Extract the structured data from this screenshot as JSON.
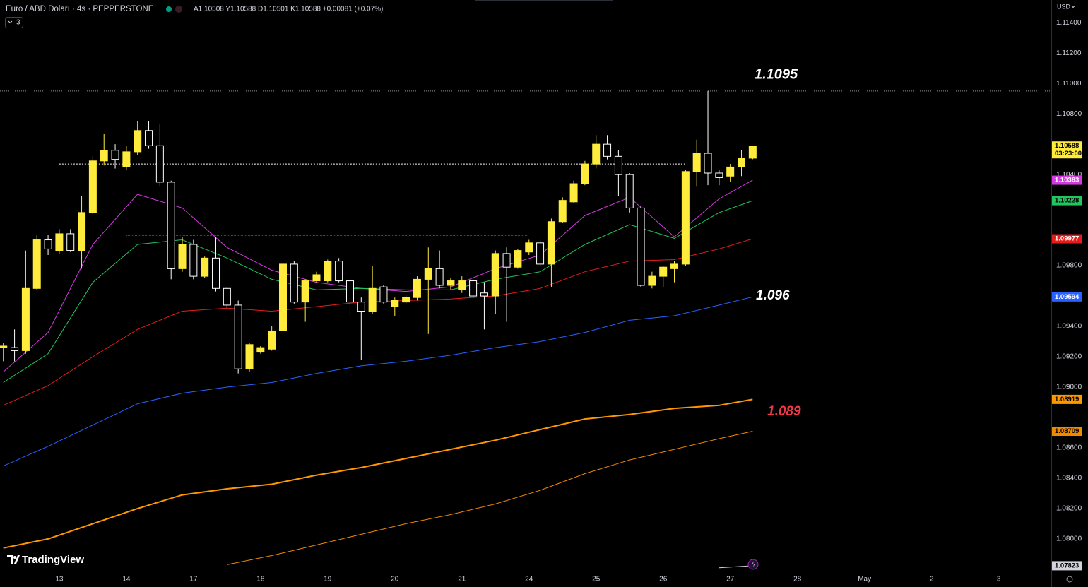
{
  "chart_data": {
    "type": "candlestick",
    "title": "Euro / ABD Doları · 4s · PEPPERSTONE",
    "legend_text": "A1.10508 Y1.10588 D1.10501 K1.10588 +0.00081 (+0.07%)",
    "indicator_count": "3",
    "currency": "USD",
    "brand": "TradingView",
    "countdown": "03:23:00",
    "up_color": "#ffeb3b",
    "down_color": "#ffffff",
    "grid": false,
    "xlim": [
      -0.3,
      93.7
    ],
    "xticks": [
      {
        "value": 5,
        "label": "13"
      },
      {
        "value": 11,
        "label": "14"
      },
      {
        "value": 17,
        "label": "17"
      },
      {
        "value": 23,
        "label": "18"
      },
      {
        "value": 29,
        "label": "19"
      },
      {
        "value": 35,
        "label": "20"
      },
      {
        "value": 41,
        "label": "21"
      },
      {
        "value": 47,
        "label": "24"
      },
      {
        "value": 53,
        "label": "25"
      },
      {
        "value": 59,
        "label": "26"
      },
      {
        "value": 65,
        "label": "27"
      },
      {
        "value": 71,
        "label": "28"
      },
      {
        "value": 77,
        "label": "May"
      },
      {
        "value": 83,
        "label": "2"
      },
      {
        "value": 89,
        "label": "3"
      }
    ],
    "ylim": [
      1.0779,
      1.1155
    ],
    "yticks": [
      {
        "value": 1.114,
        "label": "1.11400"
      },
      {
        "value": 1.112,
        "label": "1.11200"
      },
      {
        "value": 1.11,
        "label": "1.11000"
      },
      {
        "value": 1.108,
        "label": "1.10800"
      },
      {
        "value": 1.104,
        "label": "1.10400"
      },
      {
        "value": 1.098,
        "label": "1.09800"
      },
      {
        "value": 1.094,
        "label": "1.09400"
      },
      {
        "value": 1.092,
        "label": "1.09200"
      },
      {
        "value": 1.09,
        "label": "1.09000"
      },
      {
        "value": 1.086,
        "label": "1.08600"
      },
      {
        "value": 1.084,
        "label": "1.08400"
      },
      {
        "value": 1.082,
        "label": "1.08200"
      },
      {
        "value": 1.08,
        "label": "1.08000"
      }
    ],
    "candles": {
      "open": [
        1.0926,
        1.0926,
        1.0924,
        1.0965,
        1.0997,
        1.099,
        1.1001,
        1.099,
        1.1015,
        1.1049,
        1.1056,
        1.1045,
        1.1055,
        1.1069,
        1.1059,
        1.1035,
        1.0978,
        1.0994,
        1.0973,
        1.0985,
        1.0965,
        1.0954,
        1.0912,
        1.0923,
        1.0925,
        1.0937,
        1.0981,
        1.0956,
        1.097,
        1.097,
        1.0983,
        1.097,
        1.0956,
        1.095,
        1.0966,
        1.0953,
        1.0956,
        1.0959,
        1.0971,
        1.0978,
        1.0967,
        1.0964,
        1.097,
        1.0962,
        1.096,
        1.0988,
        1.0979,
        1.0989,
        1.0995,
        1.0981,
        1.1009,
        1.1022,
        1.1034,
        1.1047,
        1.106,
        1.1052,
        1.104,
        1.1018,
        1.0967,
        1.0973,
        1.0978,
        1.0981,
        1.1042,
        1.1054,
        1.1041,
        1.1039,
        1.1045,
        1.10508
      ],
      "high": [
        1.0929,
        1.0938,
        1.099,
        1.1,
        1.1,
        1.1004,
        1.1004,
        1.1026,
        1.1052,
        1.1067,
        1.106,
        1.1059,
        1.1075,
        1.1075,
        1.1073,
        1.1036,
        1.0999,
        1.0997,
        1.0986,
        1.0999,
        1.0966,
        1.0957,
        1.0929,
        1.0927,
        1.094,
        1.0983,
        1.0983,
        1.0971,
        1.0976,
        1.0984,
        1.0985,
        1.0971,
        1.0959,
        1.098,
        1.0967,
        1.0959,
        1.0961,
        1.0973,
        1.0992,
        1.099,
        1.0972,
        1.0973,
        1.0971,
        1.0969,
        1.099,
        1.0992,
        1.0991,
        1.0997,
        1.0997,
        1.1011,
        1.1025,
        1.1036,
        1.1049,
        1.1066,
        1.1066,
        1.1056,
        1.1041,
        1.1019,
        1.0976,
        1.098,
        1.0983,
        1.1043,
        1.1063,
        1.1095,
        1.1043,
        1.1047,
        1.1056,
        1.10588
      ],
      "low": [
        1.0917,
        1.0917,
        1.0922,
        1.0964,
        1.0987,
        1.0988,
        1.0989,
        1.0978,
        1.1014,
        1.1046,
        1.1044,
        1.1043,
        1.1053,
        1.1057,
        1.1032,
        1.0971,
        1.0976,
        1.0971,
        1.0972,
        1.0963,
        1.0952,
        1.0909,
        1.091,
        1.0922,
        1.0924,
        1.0936,
        1.0955,
        1.0943,
        1.0969,
        1.0969,
        1.0969,
        1.0946,
        1.0918,
        1.0948,
        1.0955,
        1.0947,
        1.0955,
        1.0957,
        1.0935,
        1.0965,
        1.0964,
        1.0962,
        1.0959,
        1.0938,
        1.0948,
        1.0943,
        1.0978,
        1.0987,
        1.098,
        1.0966,
        1.1008,
        1.1021,
        1.1033,
        1.1044,
        1.105,
        1.1026,
        1.1015,
        1.0966,
        1.0965,
        1.0966,
        1.0969,
        1.098,
        1.1032,
        1.1033,
        1.1033,
        1.1035,
        1.1039,
        1.10501
      ],
      "close": [
        1.0927,
        1.0924,
        1.0965,
        1.0997,
        1.0991,
        1.1001,
        1.099,
        1.1015,
        1.1049,
        1.1056,
        1.105,
        1.1055,
        1.1069,
        1.1059,
        1.1035,
        1.0978,
        1.0994,
        1.0973,
        1.0985,
        1.0965,
        1.0954,
        1.0912,
        1.0928,
        1.0926,
        1.0937,
        1.0981,
        1.0956,
        1.097,
        1.0974,
        1.0983,
        1.097,
        1.0956,
        1.095,
        1.0965,
        1.0956,
        1.0957,
        1.0959,
        1.0971,
        1.0978,
        1.0967,
        1.097,
        1.097,
        1.096,
        1.096,
        1.0988,
        1.0979,
        1.099,
        1.0995,
        1.0981,
        1.1009,
        1.1023,
        1.1034,
        1.1047,
        1.106,
        1.1052,
        1.104,
        1.1018,
        1.0967,
        1.0973,
        1.0979,
        1.0981,
        1.1042,
        1.1054,
        1.1041,
        1.1038,
        1.1045,
        1.1051,
        1.10588
      ]
    },
    "series": [
      {
        "color": "#d33be0",
        "width": 1,
        "tag_text": "#ffffff",
        "x": [
          0,
          4,
          8,
          12,
          16,
          20,
          24,
          28,
          32,
          36,
          40,
          44,
          48,
          52,
          56,
          60,
          64,
          67
        ],
        "values": [
          1.091,
          1.0936,
          1.0994,
          1.1027,
          1.1018,
          1.0992,
          1.0977,
          1.0969,
          1.0965,
          1.0963,
          1.0966,
          1.0978,
          1.0987,
          1.1013,
          1.1025,
          1.0999,
          1.1024,
          1.10363
        ]
      },
      {
        "color": "#22c55e",
        "width": 1,
        "tag_text": "#000000",
        "x": [
          0,
          4,
          8,
          12,
          16,
          20,
          24,
          28,
          32,
          36,
          40,
          44,
          48,
          52,
          56,
          60,
          64,
          67
        ],
        "values": [
          1.0903,
          1.0922,
          1.0969,
          1.0994,
          1.0997,
          1.0985,
          1.0971,
          1.0964,
          1.0965,
          1.0964,
          1.0964,
          1.0971,
          1.0976,
          1.0994,
          1.1007,
          1.0998,
          1.1015,
          1.10228
        ]
      },
      {
        "color": "#e51c1c",
        "width": 1,
        "tag_text": "#ffffff",
        "x": [
          0,
          4,
          8,
          12,
          16,
          20,
          24,
          28,
          32,
          36,
          40,
          44,
          48,
          52,
          56,
          60,
          64,
          67
        ],
        "values": [
          1.0888,
          1.0901,
          1.092,
          1.0938,
          1.095,
          1.0952,
          1.095,
          1.0953,
          1.0956,
          1.0957,
          1.0958,
          1.096,
          1.0965,
          1.0976,
          1.0983,
          1.0984,
          1.0991,
          1.09977
        ]
      },
      {
        "color": "#2962ff",
        "width": 1,
        "tag_text": "#ffffff",
        "x": [
          0,
          4,
          8,
          12,
          16,
          20,
          24,
          28,
          32,
          36,
          40,
          44,
          48,
          52,
          56,
          60,
          64,
          67
        ],
        "values": [
          1.0848,
          1.0861,
          1.0875,
          1.0889,
          1.0896,
          1.09,
          1.0903,
          1.0909,
          1.0914,
          1.0917,
          1.0921,
          1.0926,
          1.093,
          1.0936,
          1.0944,
          1.0947,
          1.0954,
          1.09594
        ]
      },
      {
        "color": "#ff9800",
        "width": 2,
        "tag_text": "#000000",
        "x": [
          0,
          4,
          8,
          12,
          16,
          20,
          24,
          28,
          32,
          36,
          40,
          44,
          48,
          52,
          56,
          60,
          64,
          67
        ],
        "values": [
          1.0794,
          1.08,
          1.081,
          1.082,
          1.0829,
          1.0833,
          1.0836,
          1.0842,
          1.0847,
          1.0853,
          1.0859,
          1.0865,
          1.0872,
          1.0879,
          1.0882,
          1.0886,
          1.0888,
          1.08919
        ]
      },
      {
        "color": "#f08a00",
        "width": 1,
        "tag_text": "#000000",
        "x": [
          0,
          4,
          8,
          12,
          16,
          20,
          24,
          28,
          32,
          36,
          40,
          44,
          48,
          52,
          56,
          60,
          64,
          67
        ],
        "values": [
          null,
          null,
          null,
          null,
          null,
          1.0783,
          1.0789,
          1.0796,
          1.0803,
          1.081,
          1.0816,
          1.0823,
          1.0832,
          1.0843,
          1.0852,
          1.0859,
          1.0866,
          1.08709
        ]
      },
      {
        "color": "#d1d4dc",
        "width": 1,
        "tag_text": "#000000",
        "x": [
          0,
          4,
          8,
          12,
          16,
          20,
          24,
          28,
          32,
          36,
          40,
          44,
          48,
          52,
          56,
          60,
          64,
          67
        ],
        "values": [
          null,
          null,
          null,
          null,
          null,
          null,
          null,
          null,
          null,
          null,
          null,
          null,
          null,
          null,
          null,
          null,
          1.0781,
          1.07823
        ]
      }
    ],
    "hlines": [
      {
        "value": 1.1095,
        "color": "#9598a1",
        "dash": "1 2"
      },
      {
        "value": 1.1047,
        "from": 5,
        "to": 61,
        "color": "#ffffff",
        "dash": "2 2"
      },
      {
        "value": 1.1,
        "from": 11,
        "to": 47,
        "color": "#787b86",
        "dash": "1 1"
      }
    ],
    "annotations": [
      {
        "text": "1.1095",
        "color": "#ffffff"
      },
      {
        "text": "1.096",
        "color": "#ffffff"
      },
      {
        "text": "1.089",
        "color": "#f23645"
      }
    ]
  }
}
